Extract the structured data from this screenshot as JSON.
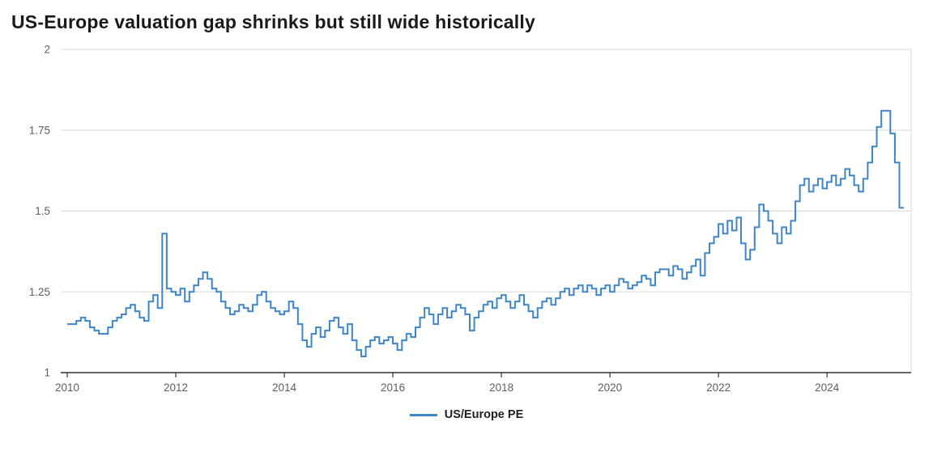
{
  "title": "US-Europe valuation gap shrinks but still wide historically",
  "legend": {
    "label": "US/Europe PE"
  },
  "colors": {
    "line": "#3d85c6",
    "grid": "#d8d8d8",
    "axis": "#333333",
    "tick_label": "#595f66",
    "title": "#1a1a1a"
  },
  "chart_data": {
    "type": "line",
    "step": true,
    "title": "US-Europe valuation gap shrinks but still wide historically",
    "xlabel": "",
    "ylabel": "",
    "ylim": [
      1,
      2
    ],
    "yticks": [
      1,
      1.25,
      1.5,
      1.75,
      2
    ],
    "xticks": [
      2010,
      2012,
      2014,
      2016,
      2018,
      2020,
      2022,
      2024
    ],
    "xlim": [
      2009.88,
      2025.55
    ],
    "grid": "horizontal",
    "legend_position": "bottom",
    "series": [
      {
        "name": "US/Europe PE",
        "x_start": 2010,
        "frequency": "monthly",
        "values": [
          1.15,
          1.15,
          1.16,
          1.17,
          1.16,
          1.14,
          1.13,
          1.12,
          1.12,
          1.14,
          1.16,
          1.17,
          1.18,
          1.2,
          1.21,
          1.19,
          1.17,
          1.16,
          1.22,
          1.24,
          1.2,
          1.43,
          1.26,
          1.25,
          1.24,
          1.26,
          1.22,
          1.25,
          1.27,
          1.29,
          1.31,
          1.29,
          1.26,
          1.25,
          1.22,
          1.2,
          1.18,
          1.19,
          1.21,
          1.2,
          1.19,
          1.21,
          1.24,
          1.25,
          1.22,
          1.2,
          1.19,
          1.18,
          1.19,
          1.22,
          1.2,
          1.15,
          1.1,
          1.08,
          1.12,
          1.14,
          1.11,
          1.13,
          1.16,
          1.17,
          1.14,
          1.12,
          1.15,
          1.1,
          1.07,
          1.05,
          1.08,
          1.1,
          1.11,
          1.09,
          1.1,
          1.11,
          1.09,
          1.07,
          1.1,
          1.12,
          1.11,
          1.14,
          1.17,
          1.2,
          1.18,
          1.15,
          1.18,
          1.2,
          1.17,
          1.19,
          1.21,
          1.2,
          1.18,
          1.13,
          1.17,
          1.19,
          1.21,
          1.22,
          1.2,
          1.23,
          1.24,
          1.22,
          1.2,
          1.22,
          1.24,
          1.21,
          1.19,
          1.17,
          1.2,
          1.22,
          1.23,
          1.21,
          1.23,
          1.25,
          1.26,
          1.24,
          1.26,
          1.27,
          1.25,
          1.27,
          1.26,
          1.24,
          1.26,
          1.27,
          1.25,
          1.27,
          1.29,
          1.28,
          1.26,
          1.27,
          1.28,
          1.3,
          1.29,
          1.27,
          1.31,
          1.32,
          1.32,
          1.3,
          1.33,
          1.32,
          1.29,
          1.31,
          1.33,
          1.35,
          1.3,
          1.37,
          1.4,
          1.42,
          1.46,
          1.43,
          1.47,
          1.44,
          1.48,
          1.4,
          1.35,
          1.38,
          1.45,
          1.52,
          1.5,
          1.47,
          1.43,
          1.4,
          1.45,
          1.43,
          1.47,
          1.53,
          1.58,
          1.6,
          1.56,
          1.58,
          1.6,
          1.57,
          1.59,
          1.61,
          1.58,
          1.6,
          1.63,
          1.61,
          1.58,
          1.56,
          1.6,
          1.65,
          1.7,
          1.76,
          1.81,
          1.81,
          1.74,
          1.65,
          1.51
        ]
      }
    ]
  }
}
